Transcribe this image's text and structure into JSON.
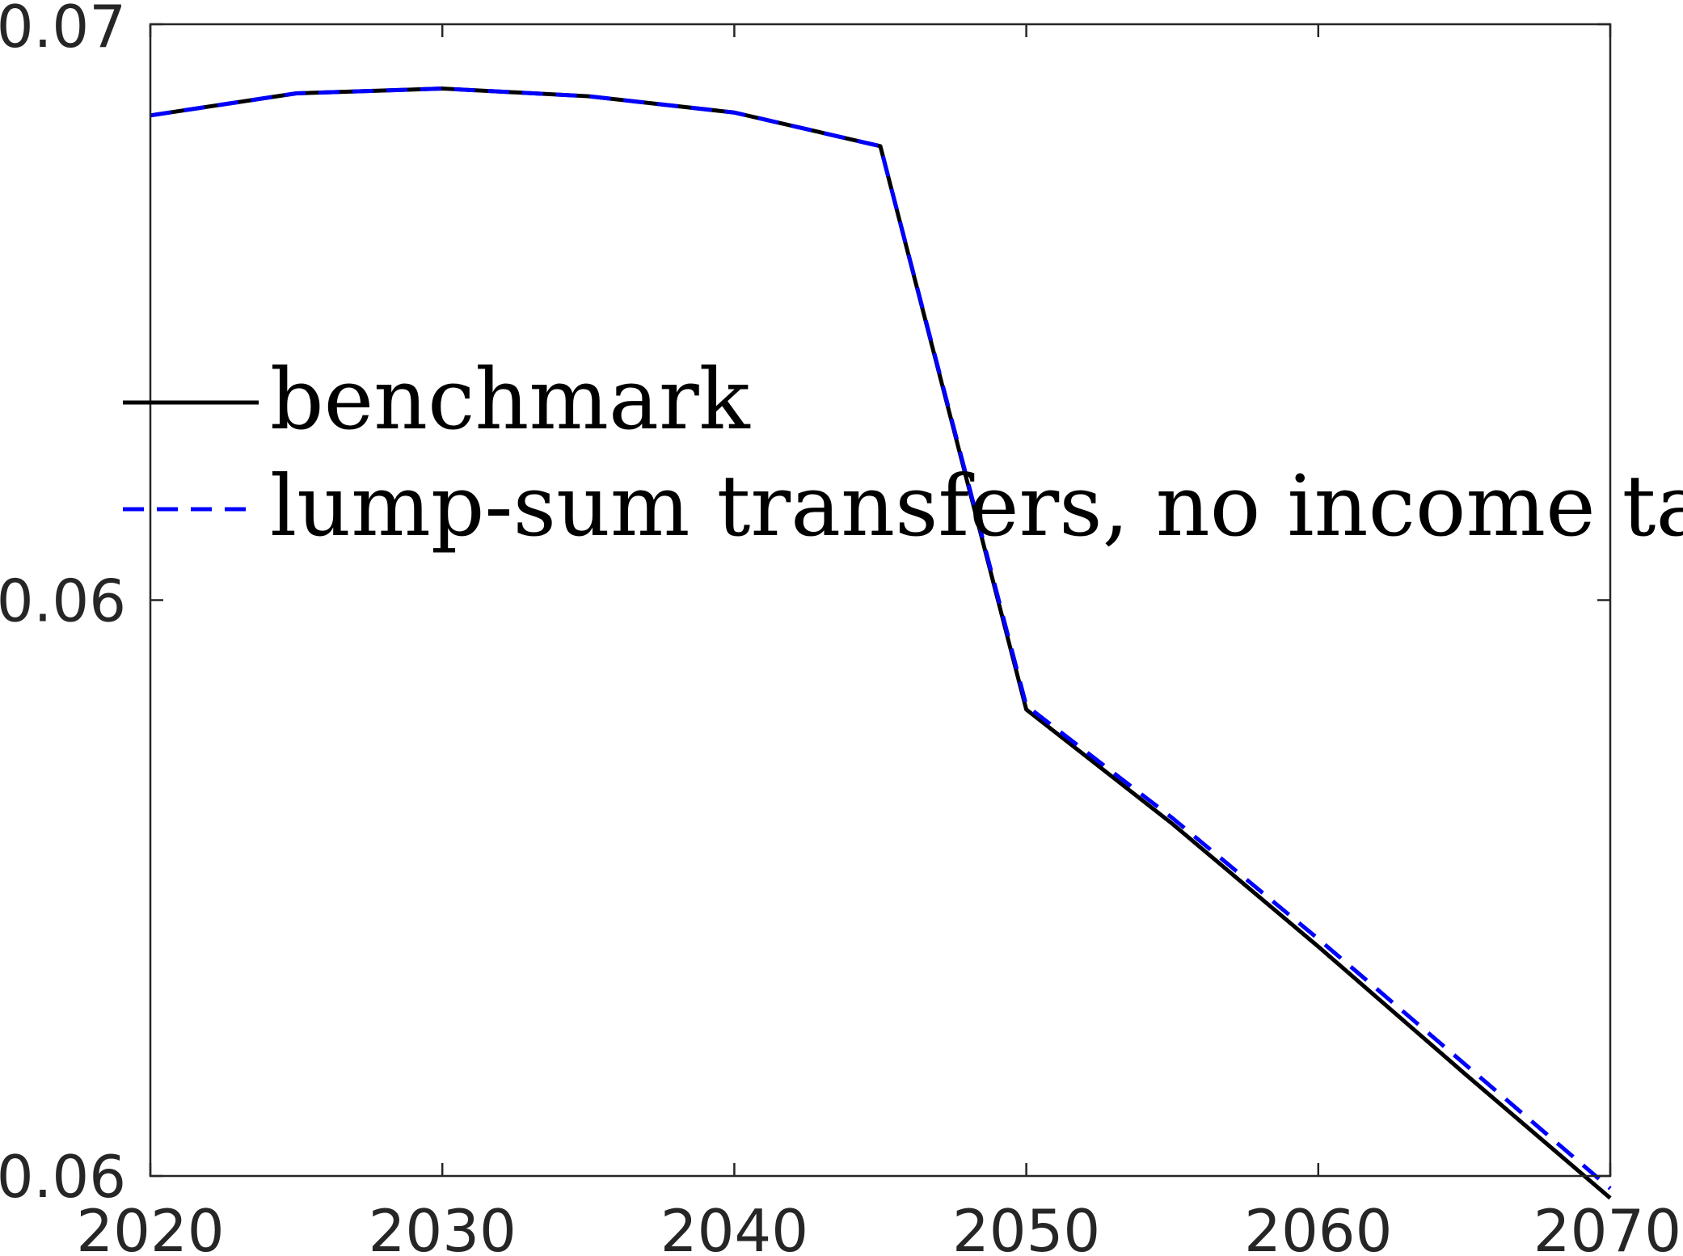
{
  "chart_data": {
    "type": "line",
    "title": "",
    "xlabel": "",
    "ylabel": "",
    "xlim": [
      2020,
      2070
    ],
    "ylim": [
      0.058,
      0.07
    ],
    "x_ticks": [
      {
        "value": 2020,
        "label": "2020"
      },
      {
        "value": 2030,
        "label": "2030"
      },
      {
        "value": 2040,
        "label": "2040"
      },
      {
        "value": 2050,
        "label": "2050"
      },
      {
        "value": 2060,
        "label": "2060"
      },
      {
        "value": 2070,
        "label": "2070"
      }
    ],
    "y_ticks": [
      {
        "value": 0.058,
        "label": "0.06"
      },
      {
        "value": 0.064,
        "label": "0.06"
      },
      {
        "value": 0.07,
        "label": "0.07"
      }
    ],
    "grid": false,
    "legend_position": "middle-left",
    "x": [
      2020,
      2025,
      2030,
      2035,
      2040,
      2045,
      2050,
      2055,
      2060,
      2065,
      2070
    ],
    "series": [
      {
        "name": "benchmark",
        "color": "#000000",
        "style": "solid",
        "values": [
          0.06905,
          0.06928,
          0.06933,
          0.06925,
          0.06908,
          0.06873,
          0.06286,
          0.06167,
          0.06039,
          0.05907,
          0.05777
        ]
      },
      {
        "name": "lump-sum transfers, no income tax",
        "color": "#0000ff",
        "style": "dashed",
        "values": [
          0.06905,
          0.06928,
          0.06933,
          0.06925,
          0.06908,
          0.06873,
          0.0629,
          0.06173,
          0.06047,
          0.05917,
          0.05787
        ]
      }
    ]
  }
}
